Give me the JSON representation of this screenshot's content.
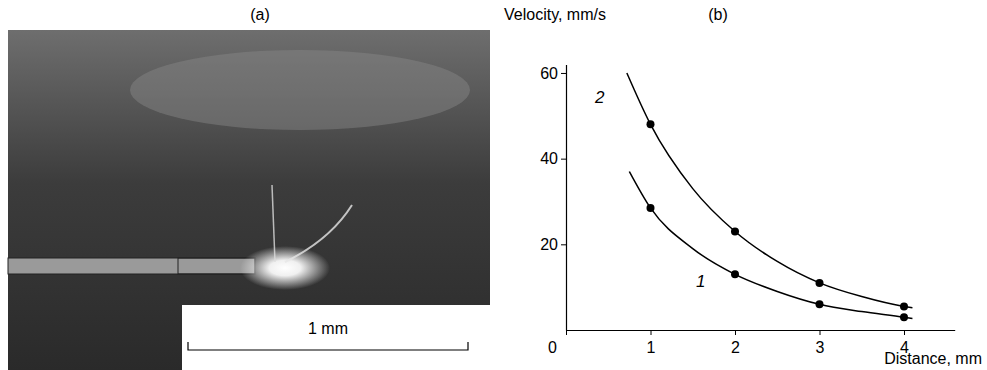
{
  "chart_data": {
    "type": "line",
    "panel_label": "(b)",
    "x_label": "Distance, mm",
    "y_label": "Velocity, mm/s",
    "xlim": [
      0,
      4.6
    ],
    "xticks": [
      0,
      1,
      2,
      3,
      4
    ],
    "ylim": [
      0,
      62
    ],
    "yticks": [
      20,
      40,
      60
    ],
    "grid": false,
    "marker": "circle",
    "series": [
      {
        "name": "1",
        "color": "#000000",
        "x": [
          1,
          2,
          3,
          4
        ],
        "values": [
          28.5,
          13,
          6,
          3
        ],
        "curve": {
          "x": [
            0.75,
            1,
            1.5,
            2,
            2.5,
            3,
            3.5,
            4,
            4.1
          ],
          "values": [
            37,
            28.5,
            19,
            13,
            9,
            6,
            4.3,
            3,
            2.7
          ]
        }
      },
      {
        "name": "2",
        "color": "#000000",
        "x": [
          1,
          2,
          3,
          4
        ],
        "values": [
          48,
          23,
          11,
          5.5
        ],
        "curve": {
          "x": [
            0.72,
            1,
            1.5,
            2,
            2.5,
            3,
            3.5,
            4,
            4.1
          ],
          "values": [
            60,
            48,
            33,
            23,
            16,
            11,
            7.8,
            5.5,
            5.2
          ]
        }
      }
    ]
  },
  "photo": {
    "panel_label": "(a)",
    "scale_bar_label": "1 mm"
  }
}
